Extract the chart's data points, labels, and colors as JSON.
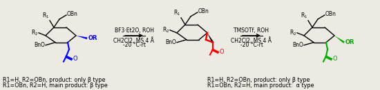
{
  "figsize": [
    5.5,
    1.31
  ],
  "dpi": 100,
  "bg_color": "#ede9e3",
  "left_caption_line1": "R1=H, R2=OBn, product: only β type",
  "left_caption_line2": "R1=OBn, R2=H, main product: β type",
  "right_caption_line1": "R1=H, R2=OBn, product: only β type",
  "right_caption_line2": "R1=OBn, R2=H, main product:  α type",
  "left_arrow_label_line1": "BF3·Et2O, ROH",
  "left_arrow_label_line2": "CH2Cl2, MS 4 Å",
  "left_arrow_label_line3": "-20 °C-rt",
  "right_arrow_label_line1": "TMSOTf, ROH",
  "right_arrow_label_line2": "CH2Cl2, MS 4 Å",
  "right_arrow_label_line3": "-20 °C-rt"
}
